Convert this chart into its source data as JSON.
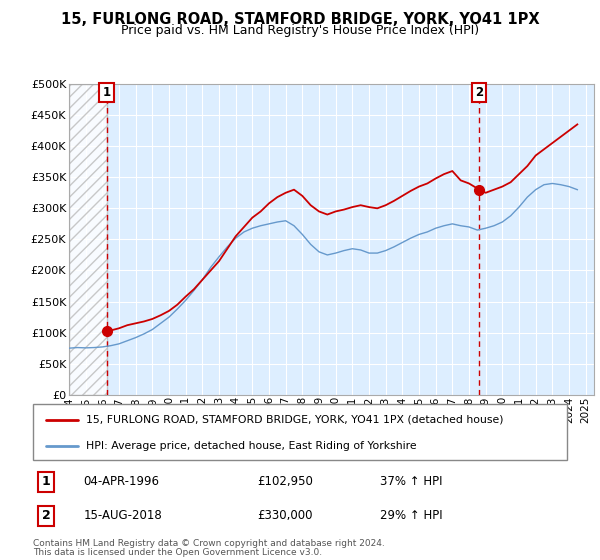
{
  "title": "15, FURLONG ROAD, STAMFORD BRIDGE, YORK, YO41 1PX",
  "subtitle": "Price paid vs. HM Land Registry's House Price Index (HPI)",
  "ytick_vals": [
    0,
    50000,
    100000,
    150000,
    200000,
    250000,
    300000,
    350000,
    400000,
    450000,
    500000
  ],
  "ytick_labels": [
    "£0",
    "£50K",
    "£100K",
    "£150K",
    "£200K",
    "£250K",
    "£300K",
    "£350K",
    "£400K",
    "£450K",
    "£500K"
  ],
  "ylim": [
    0,
    500000
  ],
  "xlim_start": 1994.0,
  "xlim_end": 2025.5,
  "purchase1_date": 1996.25,
  "purchase1_price": 102950,
  "purchase2_date": 2018.62,
  "purchase2_price": 330000,
  "legend_line1": "15, FURLONG ROAD, STAMFORD BRIDGE, YORK, YO41 1PX (detached house)",
  "legend_line2": "HPI: Average price, detached house, East Riding of Yorkshire",
  "footnote1": "Contains HM Land Registry data © Crown copyright and database right 2024.",
  "footnote2": "This data is licensed under the Open Government Licence v3.0.",
  "info1_date": "04-APR-1996",
  "info1_price": "£102,950",
  "info1_hpi": "37% ↑ HPI",
  "info2_date": "15-AUG-2018",
  "info2_price": "£330,000",
  "info2_hpi": "29% ↑ HPI",
  "property_color": "#cc0000",
  "hpi_color": "#6699cc",
  "background_plot": "#ddeeff",
  "background_fig": "#ffffff",
  "xticks": [
    1994,
    1995,
    1996,
    1997,
    1998,
    1999,
    2000,
    2001,
    2002,
    2003,
    2004,
    2005,
    2006,
    2007,
    2008,
    2009,
    2010,
    2011,
    2012,
    2013,
    2014,
    2015,
    2016,
    2017,
    2018,
    2019,
    2020,
    2021,
    2022,
    2023,
    2024,
    2025
  ],
  "property_x": [
    1996.25,
    1996.5,
    1997.0,
    1997.5,
    1998.0,
    1998.5,
    1999.0,
    1999.5,
    2000.0,
    2000.5,
    2001.0,
    2001.5,
    2002.0,
    2002.5,
    2003.0,
    2003.5,
    2004.0,
    2004.5,
    2005.0,
    2005.5,
    2006.0,
    2006.5,
    2007.0,
    2007.5,
    2008.0,
    2008.5,
    2009.0,
    2009.5,
    2010.0,
    2010.5,
    2011.0,
    2011.5,
    2012.0,
    2012.5,
    2013.0,
    2013.5,
    2014.0,
    2014.5,
    2015.0,
    2015.5,
    2016.0,
    2016.5,
    2017.0,
    2017.5,
    2018.0,
    2018.62,
    2019.0,
    2019.5,
    2020.0,
    2020.5,
    2021.0,
    2021.5,
    2022.0,
    2022.5,
    2023.0,
    2023.5,
    2024.0,
    2024.5
  ],
  "property_y": [
    102950,
    103500,
    107000,
    112000,
    115000,
    118000,
    122000,
    128000,
    135000,
    145000,
    158000,
    170000,
    185000,
    200000,
    215000,
    235000,
    255000,
    270000,
    285000,
    295000,
    308000,
    318000,
    325000,
    330000,
    320000,
    305000,
    295000,
    290000,
    295000,
    298000,
    302000,
    305000,
    302000,
    300000,
    305000,
    312000,
    320000,
    328000,
    335000,
    340000,
    348000,
    355000,
    360000,
    345000,
    340000,
    330000,
    325000,
    330000,
    335000,
    342000,
    355000,
    368000,
    385000,
    395000,
    405000,
    415000,
    425000,
    435000
  ],
  "hpi_x": [
    1994.0,
    1994.5,
    1995.0,
    1995.5,
    1996.0,
    1996.5,
    1997.0,
    1997.5,
    1998.0,
    1998.5,
    1999.0,
    1999.5,
    2000.0,
    2000.5,
    2001.0,
    2001.5,
    2002.0,
    2002.5,
    2003.0,
    2003.5,
    2004.0,
    2004.5,
    2005.0,
    2005.5,
    2006.0,
    2006.5,
    2007.0,
    2007.5,
    2008.0,
    2008.5,
    2009.0,
    2009.5,
    2010.0,
    2010.5,
    2011.0,
    2011.5,
    2012.0,
    2012.5,
    2013.0,
    2013.5,
    2014.0,
    2014.5,
    2015.0,
    2015.5,
    2016.0,
    2016.5,
    2017.0,
    2017.5,
    2018.0,
    2018.5,
    2019.0,
    2019.5,
    2020.0,
    2020.5,
    2021.0,
    2021.5,
    2022.0,
    2022.5,
    2023.0,
    2023.5,
    2024.0,
    2024.5
  ],
  "hpi_y": [
    75000,
    76000,
    75500,
    76000,
    77000,
    79000,
    82000,
    87000,
    92000,
    98000,
    105000,
    115000,
    125000,
    138000,
    152000,
    168000,
    185000,
    205000,
    222000,
    238000,
    252000,
    262000,
    268000,
    272000,
    275000,
    278000,
    280000,
    272000,
    258000,
    242000,
    230000,
    225000,
    228000,
    232000,
    235000,
    233000,
    228000,
    228000,
    232000,
    238000,
    245000,
    252000,
    258000,
    262000,
    268000,
    272000,
    275000,
    272000,
    270000,
    265000,
    268000,
    272000,
    278000,
    288000,
    302000,
    318000,
    330000,
    338000,
    340000,
    338000,
    335000,
    330000
  ]
}
